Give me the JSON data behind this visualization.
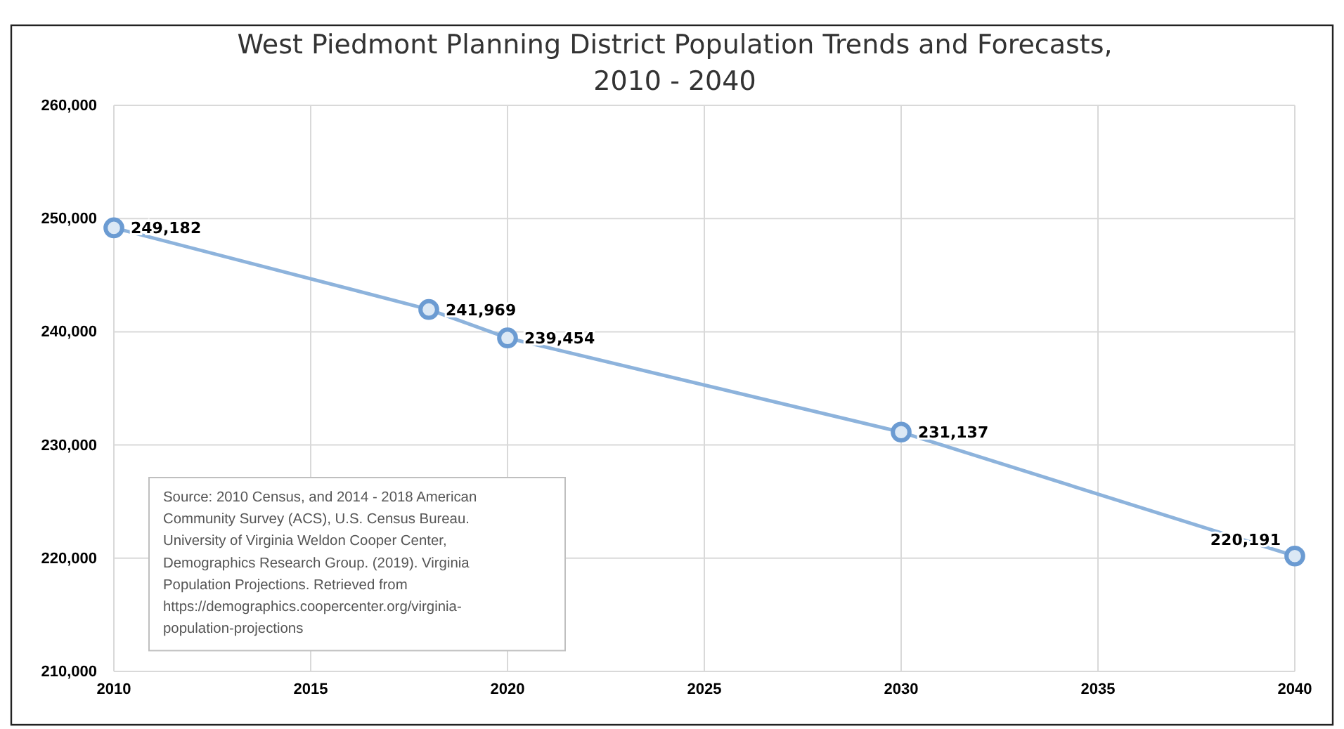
{
  "chart_data": {
    "type": "line",
    "title": "West Piedmont Planning District Population Trends and Forecasts,\n2010 - 2040",
    "x": [
      2010,
      2018,
      2020,
      2030,
      2040
    ],
    "series": [
      {
        "color": "#8db3dc",
        "values": [
          249182,
          241969,
          239454,
          231137,
          220191
        ],
        "value_labels": [
          "249,182",
          "241,969",
          "239,454",
          "231,137",
          "220,191"
        ]
      }
    ],
    "xlim": [
      2010,
      2040
    ],
    "xticks": [
      2010,
      2015,
      2020,
      2025,
      2030,
      2035,
      2040
    ],
    "ylim": [
      210000,
      260000
    ],
    "yticks": [
      {
        "value": 210000,
        "label": "210,000"
      },
      {
        "value": 220000,
        "label": "220,000"
      },
      {
        "value": 230000,
        "label": "230,000"
      },
      {
        "value": 240000,
        "label": "240,000"
      },
      {
        "value": 250000,
        "label": "250,000"
      },
      {
        "value": 260000,
        "label": "260,000"
      }
    ],
    "grid": true,
    "marker": "circle",
    "line_style": "solid",
    "annotations": [
      "Source:  2010 Census, and 2014 - 2018 American\nCommunity Survey (ACS), U.S. Census Bureau.\nUniversity of Virginia Weldon Cooper Center,\nDemographics Research Group. (2019). Virginia\nPopulation Projections.  Retrieved from\nhttps://demographics.coopercenter.org/virginia-\npopulation-projections"
    ]
  }
}
